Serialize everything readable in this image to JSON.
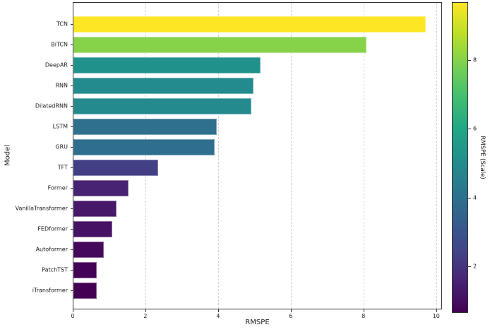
{
  "chart_data": {
    "type": "bar",
    "orientation": "horizontal",
    "title": "",
    "xlabel": "RMSPE",
    "ylabel": "Model",
    "categories": [
      "TCN",
      "BiTCN",
      "DeepAR",
      "RNN",
      "DilatedRNN",
      "LSTM",
      "GRU",
      "TFT",
      "Former",
      "VanillaTransformer",
      "FEDformer",
      "Autoformer",
      "PatchTST",
      "iTransformer"
    ],
    "values": [
      9.7,
      8.07,
      5.15,
      4.95,
      4.9,
      3.95,
      3.88,
      2.33,
      1.52,
      1.19,
      1.06,
      0.83,
      0.65,
      0.64
    ],
    "bar_colors": [
      "#fde725",
      "#86d34a",
      "#21918c",
      "#238b8d",
      "#248a8d",
      "#2e708e",
      "#2f6e8e",
      "#423f85",
      "#482273",
      "#471769",
      "#461264",
      "#45095b",
      "#440256",
      "#440154"
    ],
    "xlim": [
      0,
      10.16
    ],
    "x_ticks": [
      0,
      2,
      4,
      6,
      8,
      10
    ],
    "grid": "vertical-dashed",
    "legend": "none",
    "colorbar": {
      "label": "RMSPE (Scale)",
      "vmin": 0.63,
      "vmax": 9.7,
      "ticks": [
        8,
        6,
        4,
        2
      ],
      "gradient_top_to_bottom": [
        "#fde725",
        "#bddf26",
        "#7ad151",
        "#44bf70",
        "#22a884",
        "#21918c",
        "#2a788e",
        "#355f8d",
        "#414487",
        "#482475",
        "#440154"
      ]
    }
  }
}
